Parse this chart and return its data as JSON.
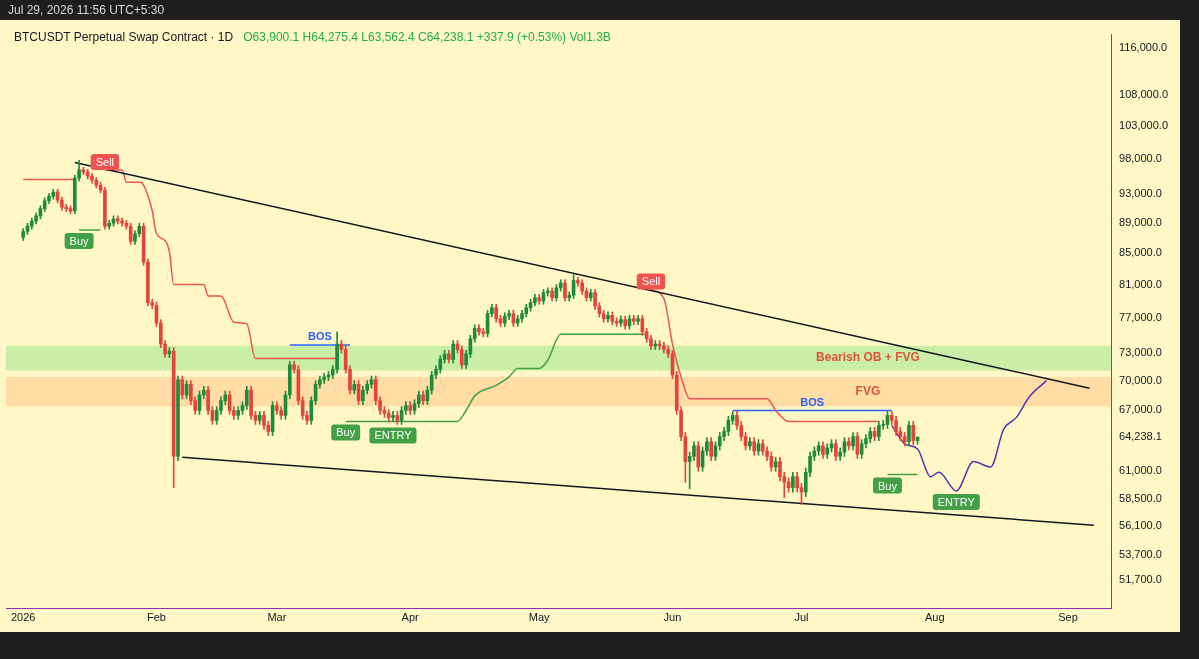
{
  "chart_data": {
    "type": "candlestick",
    "title": "BTCUSDT Perpetual Swap Contract · 1D",
    "subtitle": "O63,900.1 H64,275.4 L63,562.4 C64,238.1 +337.9 (+0.53%) Vol1.3B",
    "x": [
      "2026-01-01",
      "2026-01-02",
      "2026-01-03",
      "2026-01-04",
      "2026-01-05",
      "2026-01-06",
      "2026-01-07",
      "2026-01-08",
      "2026-01-09",
      "2026-01-10",
      "2026-01-11",
      "2026-01-12",
      "2026-01-13",
      "2026-01-14",
      "2026-01-15",
      "2026-01-16",
      "2026-01-17",
      "2026-01-18",
      "2026-01-19",
      "2026-01-20",
      "2026-01-21",
      "2026-01-22",
      "2026-01-23",
      "2026-01-24",
      "2026-01-25",
      "2026-01-26",
      "2026-01-27",
      "2026-01-28",
      "2026-01-29",
      "2026-01-30",
      "2026-01-31",
      "2026-02-01",
      "2026-02-02",
      "2026-02-03",
      "2026-02-04",
      "2026-02-05",
      "2026-02-06",
      "2026-02-07",
      "2026-02-08",
      "2026-02-09",
      "2026-02-10",
      "2026-02-11",
      "2026-02-12",
      "2026-02-13",
      "2026-02-14",
      "2026-02-15",
      "2026-02-16",
      "2026-02-17",
      "2026-02-18",
      "2026-02-19",
      "2026-02-20",
      "2026-02-21",
      "2026-02-22",
      "2026-02-23",
      "2026-02-24",
      "2026-02-25",
      "2026-02-26",
      "2026-02-27",
      "2026-02-28",
      "2026-03-01",
      "2026-03-02",
      "2026-03-03",
      "2026-03-04",
      "2026-03-05",
      "2026-03-06",
      "2026-03-07",
      "2026-03-08",
      "2026-03-09",
      "2026-03-10",
      "2026-03-11",
      "2026-03-12",
      "2026-03-13",
      "2026-03-14",
      "2026-03-15",
      "2026-03-16",
      "2026-03-17",
      "2026-03-18",
      "2026-03-19",
      "2026-03-20",
      "2026-03-21",
      "2026-03-22",
      "2026-03-23",
      "2026-03-24",
      "2026-03-25",
      "2026-03-26",
      "2026-03-27",
      "2026-03-28",
      "2026-03-29",
      "2026-03-30",
      "2026-03-31",
      "2026-04-01",
      "2026-04-02",
      "2026-04-03",
      "2026-04-04",
      "2026-04-05",
      "2026-04-06",
      "2026-04-07",
      "2026-04-08",
      "2026-04-09",
      "2026-04-10",
      "2026-04-11",
      "2026-04-12",
      "2026-04-13",
      "2026-04-14",
      "2026-04-15",
      "2026-04-16",
      "2026-04-17",
      "2026-04-18",
      "2026-04-19",
      "2026-04-20",
      "2026-04-21",
      "2026-04-22",
      "2026-04-23",
      "2026-04-24",
      "2026-04-25",
      "2026-04-26",
      "2026-04-27",
      "2026-04-28",
      "2026-04-29",
      "2026-04-30",
      "2026-05-01",
      "2026-05-02",
      "2026-05-03",
      "2026-05-04",
      "2026-05-05",
      "2026-05-06",
      "2026-05-07",
      "2026-05-08",
      "2026-05-09",
      "2026-05-10",
      "2026-05-11",
      "2026-05-12",
      "2026-05-13",
      "2026-05-14",
      "2026-05-15",
      "2026-05-16",
      "2026-05-17",
      "2026-05-18",
      "2026-05-19",
      "2026-05-20",
      "2026-05-21",
      "2026-05-22",
      "2026-05-23",
      "2026-05-24",
      "2026-05-25",
      "2026-05-26",
      "2026-05-27",
      "2026-05-28",
      "2026-05-29",
      "2026-05-30",
      "2026-05-31",
      "2026-06-01",
      "2026-06-02",
      "2026-06-03",
      "2026-06-04",
      "2026-06-05",
      "2026-06-06",
      "2026-06-07",
      "2026-06-08",
      "2026-06-09",
      "2026-06-10",
      "2026-06-11",
      "2026-06-12",
      "2026-06-13",
      "2026-06-14",
      "2026-06-15",
      "2026-06-16",
      "2026-06-17",
      "2026-06-18",
      "2026-06-19",
      "2026-06-20",
      "2026-06-21",
      "2026-06-22",
      "2026-06-23",
      "2026-06-24",
      "2026-06-25",
      "2026-06-26",
      "2026-06-27",
      "2026-06-28",
      "2026-06-29",
      "2026-06-30",
      "2026-07-01",
      "2026-07-02",
      "2026-07-03",
      "2026-07-04",
      "2026-07-05",
      "2026-07-06",
      "2026-07-07",
      "2026-07-08",
      "2026-07-09",
      "2026-07-10",
      "2026-07-11",
      "2026-07-12",
      "2026-07-13",
      "2026-07-14",
      "2026-07-15",
      "2026-07-16",
      "2026-07-17",
      "2026-07-18",
      "2026-07-19",
      "2026-07-20",
      "2026-07-21",
      "2026-07-22",
      "2026-07-23",
      "2026-07-24",
      "2026-07-25",
      "2026-07-26",
      "2026-07-27",
      "2026-07-28"
    ],
    "ohlc": [
      [
        87000,
        88200,
        86600,
        87800
      ],
      [
        87800,
        88900,
        87400,
        88500
      ],
      [
        88500,
        89600,
        88100,
        89200
      ],
      [
        89200,
        90300,
        88800,
        89900
      ],
      [
        89900,
        91300,
        89500,
        90900
      ],
      [
        90900,
        92400,
        90500,
        92000
      ],
      [
        92000,
        93000,
        91600,
        92600
      ],
      [
        92600,
        93600,
        92200,
        93200
      ],
      [
        93200,
        93600,
        91700,
        92100
      ],
      [
        92100,
        92500,
        90700,
        91100
      ],
      [
        91100,
        91500,
        90500,
        90900
      ],
      [
        90900,
        91300,
        90200,
        90600
      ],
      [
        90600,
        95600,
        90200,
        95200
      ],
      [
        95200,
        97800,
        94800,
        96400
      ],
      [
        96400,
        96800,
        95700,
        96100
      ],
      [
        96100,
        96500,
        95100,
        95500
      ],
      [
        95500,
        95900,
        94500,
        94900
      ],
      [
        94900,
        95300,
        93800,
        94200
      ],
      [
        94200,
        94600,
        93100,
        93500
      ],
      [
        93500,
        93900,
        88100,
        88500
      ],
      [
        88500,
        89300,
        88100,
        88900
      ],
      [
        88900,
        89900,
        88500,
        89500
      ],
      [
        89500,
        89900,
        88800,
        89200
      ],
      [
        89200,
        89600,
        88500,
        88900
      ],
      [
        88900,
        89300,
        88100,
        88500
      ],
      [
        88500,
        88900,
        86100,
        86500
      ],
      [
        86500,
        87900,
        86100,
        87500
      ],
      [
        87500,
        88900,
        87100,
        88500
      ],
      [
        88500,
        88900,
        83400,
        83800
      ],
      [
        83800,
        84200,
        78400,
        78800
      ],
      [
        78800,
        79200,
        78100,
        78500
      ],
      [
        78500,
        78900,
        76000,
        76400
      ],
      [
        76400,
        76800,
        73600,
        74000
      ],
      [
        74000,
        74400,
        72500,
        72900
      ],
      [
        72900,
        73600,
        72500,
        73200
      ],
      [
        73200,
        73600,
        59500,
        62400
      ],
      [
        62400,
        70500,
        62000,
        70100
      ],
      [
        70100,
        70500,
        68100,
        68500
      ],
      [
        68500,
        70000,
        68100,
        69600
      ],
      [
        69600,
        70000,
        67500,
        67900
      ],
      [
        67900,
        68300,
        66500,
        66900
      ],
      [
        66900,
        68900,
        66500,
        68500
      ],
      [
        68500,
        69400,
        68100,
        69000
      ],
      [
        69000,
        69400,
        66500,
        66900
      ],
      [
        66900,
        67300,
        65500,
        65900
      ],
      [
        65900,
        67300,
        65500,
        66900
      ],
      [
        66900,
        68300,
        66500,
        67900
      ],
      [
        67900,
        68900,
        67500,
        68500
      ],
      [
        68500,
        68900,
        66500,
        66900
      ],
      [
        66900,
        67300,
        66000,
        66400
      ],
      [
        66400,
        67300,
        66000,
        66900
      ],
      [
        66900,
        67800,
        66500,
        67400
      ],
      [
        67400,
        69400,
        67000,
        69000
      ],
      [
        69000,
        69400,
        66000,
        66400
      ],
      [
        66400,
        66800,
        65500,
        65900
      ],
      [
        65900,
        66800,
        65500,
        66400
      ],
      [
        66400,
        66800,
        65000,
        65400
      ],
      [
        65400,
        65800,
        64400,
        64800
      ],
      [
        64800,
        67800,
        64400,
        67400
      ],
      [
        67400,
        67800,
        66500,
        66900
      ],
      [
        66900,
        67300,
        66000,
        66400
      ],
      [
        66400,
        68900,
        66000,
        68500
      ],
      [
        68500,
        72100,
        68100,
        71700
      ],
      [
        71700,
        72100,
        70800,
        71200
      ],
      [
        71200,
        71600,
        67500,
        67900
      ],
      [
        67900,
        68300,
        66000,
        66400
      ],
      [
        66400,
        66800,
        65500,
        65900
      ],
      [
        65900,
        68300,
        65500,
        67900
      ],
      [
        67900,
        70000,
        67500,
        69600
      ],
      [
        69600,
        70500,
        69200,
        70100
      ],
      [
        70100,
        70800,
        69700,
        70400
      ],
      [
        70400,
        71000,
        70000,
        70600
      ],
      [
        70600,
        71600,
        70200,
        71200
      ],
      [
        71200,
        75400,
        70800,
        74000
      ],
      [
        74000,
        74400,
        73000,
        73400
      ],
      [
        73400,
        73800,
        70800,
        71200
      ],
      [
        71200,
        71600,
        68600,
        69000
      ],
      [
        69000,
        70000,
        68600,
        69600
      ],
      [
        69600,
        70000,
        67500,
        67900
      ],
      [
        67900,
        69400,
        67500,
        69000
      ],
      [
        69000,
        70000,
        68600,
        69600
      ],
      [
        69600,
        70500,
        69200,
        70100
      ],
      [
        70100,
        70500,
        67500,
        67900
      ],
      [
        67900,
        68300,
        66500,
        66900
      ],
      [
        66900,
        67300,
        66200,
        66600
      ],
      [
        66600,
        67000,
        65800,
        66200
      ],
      [
        66200,
        66800,
        65800,
        66400
      ],
      [
        66400,
        66800,
        65500,
        65900
      ],
      [
        65900,
        67300,
        65500,
        66900
      ],
      [
        66900,
        67800,
        66500,
        67400
      ],
      [
        67400,
        67800,
        66500,
        66900
      ],
      [
        66900,
        68000,
        66500,
        67600
      ],
      [
        67600,
        68900,
        67200,
        68500
      ],
      [
        68500,
        68900,
        67500,
        67900
      ],
      [
        67900,
        69400,
        67500,
        69000
      ],
      [
        69000,
        71000,
        68600,
        70600
      ],
      [
        70600,
        71600,
        70200,
        71200
      ],
      [
        71200,
        72700,
        70800,
        72300
      ],
      [
        72300,
        73300,
        71900,
        72900
      ],
      [
        72900,
        73300,
        71900,
        72300
      ],
      [
        72300,
        74400,
        71900,
        74000
      ],
      [
        74000,
        74400,
        73000,
        73400
      ],
      [
        73400,
        73800,
        71300,
        71700
      ],
      [
        71700,
        73300,
        71300,
        72900
      ],
      [
        72900,
        75000,
        72500,
        74600
      ],
      [
        74600,
        76200,
        74200,
        75800
      ],
      [
        75800,
        76200,
        75000,
        75400
      ],
      [
        75400,
        75800,
        74800,
        75200
      ],
      [
        75200,
        77900,
        74800,
        77500
      ],
      [
        77500,
        78600,
        77100,
        78200
      ],
      [
        78200,
        78600,
        76500,
        76900
      ],
      [
        76900,
        77300,
        76000,
        76400
      ],
      [
        76400,
        77600,
        76000,
        77200
      ],
      [
        77200,
        77900,
        76800,
        77500
      ],
      [
        77500,
        77900,
        76000,
        76400
      ],
      [
        76400,
        77300,
        76000,
        76900
      ],
      [
        76900,
        77900,
        76500,
        77500
      ],
      [
        77500,
        78600,
        77100,
        78200
      ],
      [
        78200,
        79200,
        77800,
        78800
      ],
      [
        78800,
        79800,
        78400,
        79400
      ],
      [
        79400,
        79800,
        78600,
        79000
      ],
      [
        79000,
        80400,
        78600,
        80000
      ],
      [
        80000,
        80600,
        79600,
        80200
      ],
      [
        80200,
        80600,
        79000,
        79400
      ],
      [
        79400,
        81000,
        79000,
        80600
      ],
      [
        80600,
        81600,
        80200,
        81200
      ],
      [
        81200,
        81600,
        79000,
        79400
      ],
      [
        79400,
        80100,
        79000,
        79700
      ],
      [
        79700,
        82200,
        79300,
        81500
      ],
      [
        81500,
        81900,
        80800,
        81200
      ],
      [
        81200,
        81600,
        79800,
        80200
      ],
      [
        80200,
        80600,
        79000,
        79400
      ],
      [
        79400,
        80400,
        79000,
        80000
      ],
      [
        80000,
        80400,
        78000,
        78400
      ],
      [
        78400,
        78800,
        77100,
        77500
      ],
      [
        77500,
        77900,
        76500,
        76900
      ],
      [
        76900,
        77700,
        76500,
        77300
      ],
      [
        77300,
        77700,
        76200,
        76600
      ],
      [
        76600,
        77000,
        76000,
        76400
      ],
      [
        76400,
        77200,
        76000,
        76800
      ],
      [
        76800,
        77200,
        75700,
        76100
      ],
      [
        76100,
        77300,
        75700,
        76900
      ],
      [
        76900,
        77300,
        76200,
        76600
      ],
      [
        76600,
        77300,
        76200,
        76900
      ],
      [
        76900,
        77300,
        75000,
        75400
      ],
      [
        75400,
        75800,
        74200,
        74600
      ],
      [
        74600,
        75000,
        73400,
        73800
      ],
      [
        73800,
        74400,
        73400,
        74000
      ],
      [
        74000,
        74400,
        73400,
        73800
      ],
      [
        73800,
        74200,
        73000,
        73400
      ],
      [
        73400,
        73800,
        72500,
        72900
      ],
      [
        72900,
        73300,
        70200,
        70600
      ],
      [
        70600,
        71000,
        66500,
        66900
      ],
      [
        66900,
        67300,
        63900,
        64300
      ],
      [
        64300,
        64700,
        60000,
        61900
      ],
      [
        61900,
        62800,
        59400,
        62400
      ],
      [
        62400,
        63800,
        62000,
        63400
      ],
      [
        63400,
        63800,
        61000,
        61400
      ],
      [
        61400,
        63300,
        61000,
        62900
      ],
      [
        62900,
        64200,
        62500,
        63800
      ],
      [
        63800,
        64200,
        62000,
        62400
      ],
      [
        62400,
        63800,
        62000,
        63400
      ],
      [
        63400,
        64700,
        63000,
        64300
      ],
      [
        64300,
        65200,
        63900,
        64800
      ],
      [
        64800,
        66300,
        64400,
        65900
      ],
      [
        65900,
        66800,
        65500,
        66400
      ],
      [
        66400,
        66800,
        65000,
        65400
      ],
      [
        65400,
        65800,
        63900,
        64300
      ],
      [
        64300,
        64700,
        63000,
        63400
      ],
      [
        63400,
        64200,
        63000,
        63800
      ],
      [
        63800,
        64200,
        62500,
        62900
      ],
      [
        62900,
        64000,
        62500,
        63600
      ],
      [
        63600,
        64000,
        62500,
        62900
      ],
      [
        62900,
        63300,
        62000,
        62400
      ],
      [
        62400,
        62800,
        61000,
        61400
      ],
      [
        61400,
        62300,
        61000,
        61900
      ],
      [
        61900,
        62300,
        60100,
        60500
      ],
      [
        60500,
        60900,
        58600,
        60000
      ],
      [
        60000,
        60400,
        59100,
        59500
      ],
      [
        59500,
        60900,
        59100,
        60500
      ],
      [
        60500,
        60900,
        59100,
        59500
      ],
      [
        59500,
        59900,
        58000,
        59100
      ],
      [
        59100,
        61300,
        58700,
        60900
      ],
      [
        60900,
        62800,
        60500,
        62400
      ],
      [
        62400,
        63300,
        62000,
        62900
      ],
      [
        62900,
        63800,
        62500,
        63400
      ],
      [
        63400,
        63800,
        62200,
        62600
      ],
      [
        62600,
        63600,
        62200,
        63200
      ],
      [
        63200,
        64000,
        62800,
        63600
      ],
      [
        63600,
        64000,
        62000,
        62400
      ],
      [
        62400,
        63200,
        62000,
        62800
      ],
      [
        62800,
        64200,
        62400,
        63800
      ],
      [
        63800,
        64200,
        63000,
        63400
      ],
      [
        63400,
        64700,
        63000,
        64300
      ],
      [
        64300,
        64700,
        62200,
        62600
      ],
      [
        62600,
        64000,
        62200,
        63600
      ],
      [
        63600,
        64500,
        63200,
        64100
      ],
      [
        64100,
        65200,
        63700,
        64800
      ],
      [
        64800,
        65200,
        63900,
        64300
      ],
      [
        64300,
        65800,
        63900,
        65400
      ],
      [
        65400,
        65900,
        65000,
        65500
      ],
      [
        65500,
        66800,
        65100,
        66400
      ],
      [
        66400,
        66800,
        65500,
        65900
      ],
      [
        65900,
        66300,
        64400,
        64800
      ],
      [
        64800,
        65200,
        63900,
        64300
      ],
      [
        64300,
        64700,
        63400,
        63800
      ],
      [
        63800,
        65800,
        63400,
        65400
      ],
      [
        65400,
        65800,
        63500,
        63900
      ],
      [
        63900.1,
        64275.4,
        63562.4,
        64238.1
      ]
    ],
    "series": [
      {
        "type": "line",
        "color": "#131722",
        "x": [
          "2026-01-13",
          "2026-09-06"
        ],
        "values": [
          97500,
          69200
        ]
      },
      {
        "type": "line",
        "color": "#131722",
        "x": [
          "2026-02-07",
          "2026-09-07"
        ],
        "values": [
          62300,
          56200
        ]
      },
      {
        "type": "line",
        "color": "#ef5350",
        "x": [
          "2026-01-01",
          "2026-01-13",
          "2026-01-16",
          "2026-01-20",
          "2026-01-24",
          "2026-01-25",
          "2026-01-28",
          "2026-01-29",
          "2026-01-31",
          "2026-02-01",
          "2026-02-03",
          "2026-02-04",
          "2026-02-05",
          "2026-02-12",
          "2026-02-13",
          "2026-02-16",
          "2026-02-19",
          "2026-02-22",
          "2026-02-24",
          "2026-03-15",
          "2026-04-15",
          "2026-05-27",
          "2026-05-30",
          "2026-06-01",
          "2026-06-03",
          "2026-06-05",
          "2026-06-23",
          "2026-06-25",
          "2026-06-28",
          "2026-07-19"
        ],
        "values": [
          95000,
          95000,
          null,
          96400,
          96400,
          94600,
          94600,
          94200,
          90600,
          87500,
          86600,
          85100,
          81000,
          81000,
          79600,
          79600,
          76500,
          76300,
          72400,
          72400,
          null,
          80400,
          79300,
          74000,
          70400,
          68100,
          68100,
          66900,
          65800,
          65800
        ]
      },
      {
        "type": "line",
        "color": "#43a047",
        "x": [
          "2026-01-14",
          "2026-01-19",
          "2026-02-10",
          "2026-03-17",
          "2026-04-12",
          "2026-04-14",
          "2026-04-16",
          "2026-04-21",
          "2026-04-24",
          "2026-04-26",
          "2026-05-01",
          "2026-05-03",
          "2026-05-06",
          "2026-05-26",
          "2026-06-30",
          "2026-07-21",
          "2026-07-28"
        ],
        "values": [
          88000,
          88000,
          null,
          65800,
          65800,
          66900,
          68400,
          69500,
          70400,
          71300,
          71300,
          72200,
          75100,
          75100,
          null,
          60700,
          60700
        ]
      },
      {
        "type": "line",
        "color": "#5b2fb0",
        "x": [
          "2026-07-22",
          "2026-07-25",
          "2026-07-28",
          "2026-07-31",
          "2026-08-02",
          "2026-08-06",
          "2026-08-10",
          "2026-08-14",
          "2026-08-17",
          "2026-08-20",
          "2026-08-23",
          "2026-08-27"
        ],
        "values": [
          65400,
          63600,
          63100,
          60500,
          60900,
          59200,
          61900,
          61400,
          65000,
          66200,
          68300,
          70000
        ]
      },
      {
        "type": "line",
        "name": "BOS",
        "color": "#2962ff",
        "x": [
          "2026-03-04",
          "2026-03-18"
        ],
        "values": [
          73900,
          73900
        ]
      },
      {
        "type": "line",
        "name": "BOS",
        "color": "#2962ff",
        "x": [
          "2026-06-15",
          "2026-07-22"
        ],
        "values": [
          66900,
          66900
        ]
      }
    ],
    "bands": [
      {
        "axis": "y",
        "from": 71100,
        "to": 73800,
        "label": "Bearish OB + FVG",
        "color": "#b7eb9a"
      },
      {
        "axis": "y",
        "from": 67300,
        "to": 70400,
        "label": "FVG",
        "color": "#ffd49a"
      }
    ],
    "annotations": [
      "Jul 29, 2026 11:56 UTC+5:30",
      {
        "text": "Sell",
        "x": "2026-01-20",
        "y": 96400
      },
      {
        "text": "Buy",
        "x": "2026-01-14",
        "y": 88000
      },
      {
        "text": "Buy",
        "x": "2026-03-17",
        "y": 65800
      },
      {
        "text": "ENTRY",
        "x": "2026-03-28",
        "y": 65500
      },
      {
        "text": "Sell",
        "x": "2026-05-27",
        "y": 80400
      },
      {
        "text": "Buy",
        "x": "2026-07-21",
        "y": 60700
      },
      {
        "text": "ENTRY",
        "x": "2026-08-06",
        "y": 59200
      }
    ],
    "log": "y",
    "xlim": [
      "2025-12-28",
      "2026-09-11"
    ],
    "xticks": [
      {
        "value": "2026-01-01",
        "label": "2026"
      },
      {
        "value": "2026-02-01",
        "label": "Feb"
      },
      {
        "value": "2026-03-01",
        "label": "Mar"
      },
      {
        "value": "2026-04-01",
        "label": "Apr"
      },
      {
        "value": "2026-05-01",
        "label": "May"
      },
      {
        "value": "2026-06-01",
        "label": "Jun"
      },
      {
        "value": "2026-07-01",
        "label": "Jul"
      },
      {
        "value": "2026-08-01",
        "label": "Aug"
      },
      {
        "value": "2026-09-01",
        "label": "Sep"
      }
    ],
    "ylim": [
      49500,
      118400
    ],
    "yticks": [
      {
        "value": 51700,
        "label": "51,700.0"
      },
      {
        "value": 53700,
        "label": "53,700.0"
      },
      {
        "value": 56100,
        "label": "56,100.0"
      },
      {
        "value": 58500,
        "label": "58,500.0"
      },
      {
        "value": 61000,
        "label": "61,000.0"
      },
      {
        "value": 64238.1,
        "label": "64,238.1"
      },
      {
        "value": 67000,
        "label": "67,000.0"
      },
      {
        "value": 70000,
        "label": "70,000.0"
      },
      {
        "value": 73000,
        "label": "73,000.0"
      },
      {
        "value": 77000,
        "label": "77,000.0"
      },
      {
        "value": 81000,
        "label": "81,000.0"
      },
      {
        "value": 85000,
        "label": "85,000.0"
      },
      {
        "value": 89000,
        "label": "89,000.0"
      },
      {
        "value": 93000,
        "label": "93,000.0"
      },
      {
        "value": 98000,
        "label": "98,000.0"
      },
      {
        "value": 103000,
        "label": "103,000.0"
      },
      {
        "value": 108000,
        "label": "108,000.0"
      },
      {
        "value": 116000,
        "label": "116,000.0"
      }
    ]
  }
}
